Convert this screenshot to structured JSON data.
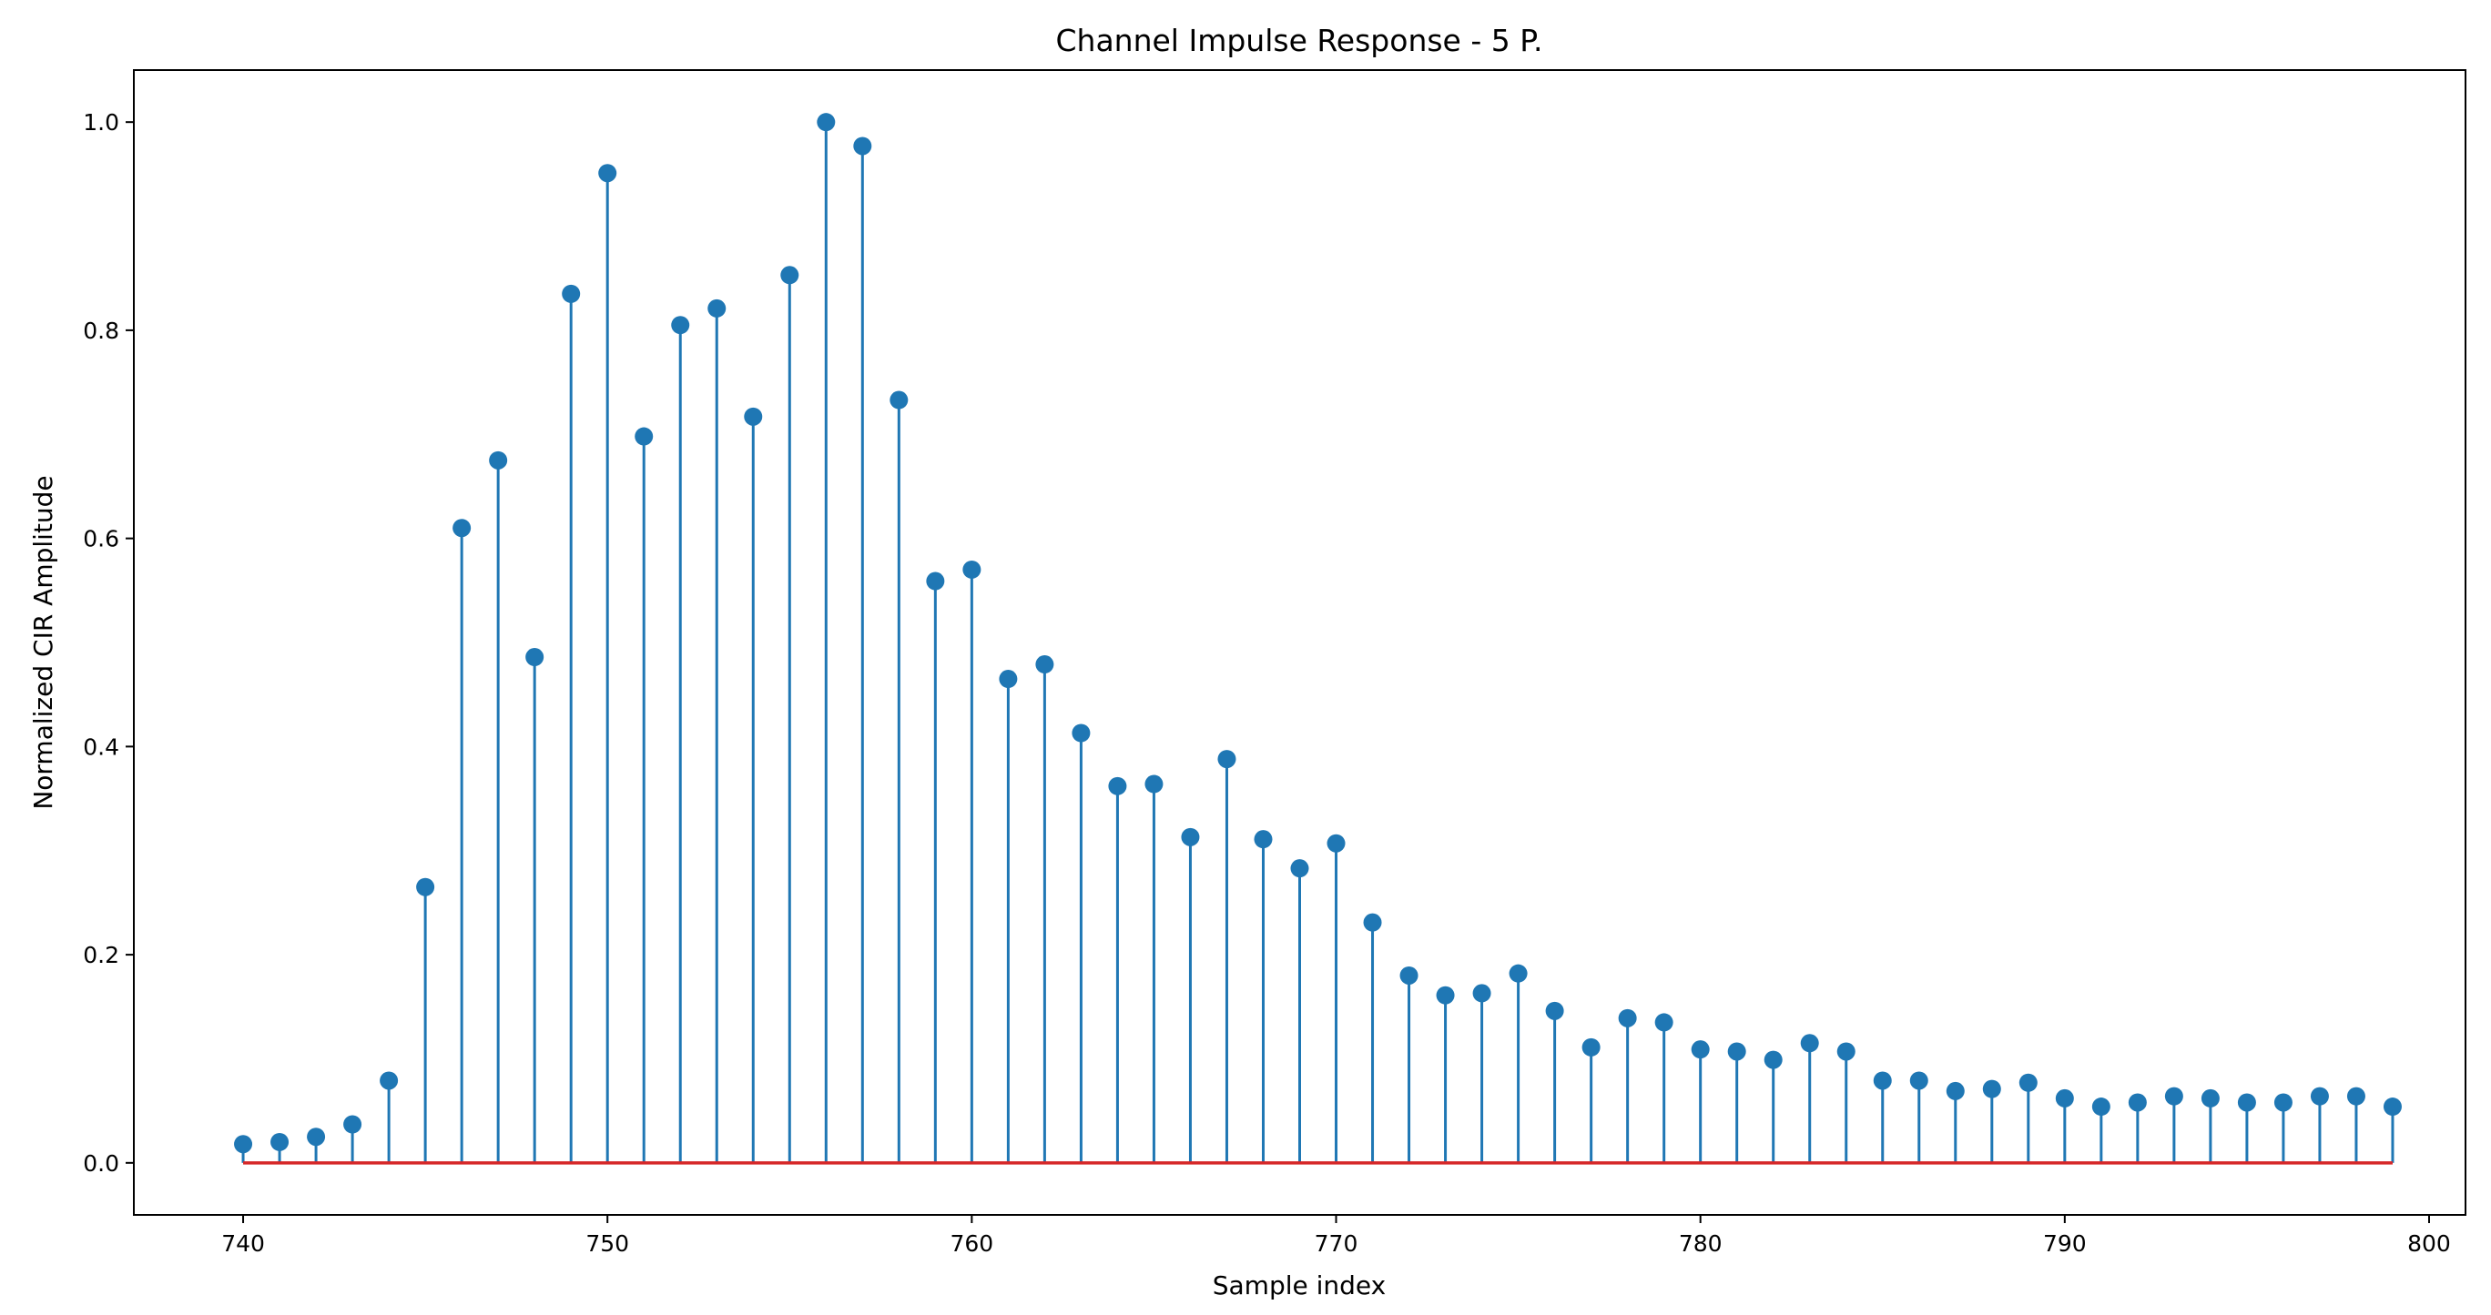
{
  "chart_data": {
    "type": "stem",
    "title": "Channel Impulse Response - 5 P.",
    "xlabel": "Sample index",
    "ylabel": "Normalized CIR Amplitude",
    "xlim": [
      737,
      801
    ],
    "ylim": [
      -0.05,
      1.05
    ],
    "x_ticks": [
      740,
      750,
      760,
      770,
      780,
      790,
      800
    ],
    "y_ticks": [
      0.0,
      0.2,
      0.4,
      0.6,
      0.8,
      1.0
    ],
    "x_tick_labels": [
      "740",
      "750",
      "760",
      "770",
      "780",
      "790",
      "800"
    ],
    "y_tick_labels": [
      "0.0",
      "0.2",
      "0.4",
      "0.6",
      "0.8",
      "1.0"
    ],
    "grid": false,
    "stem_color": "#1f77b4",
    "baseline_color": "#d62728",
    "x": [
      740,
      741,
      742,
      743,
      744,
      745,
      746,
      747,
      748,
      749,
      750,
      751,
      752,
      753,
      754,
      755,
      756,
      757,
      758,
      759,
      760,
      761,
      762,
      763,
      764,
      765,
      766,
      767,
      768,
      769,
      770,
      771,
      772,
      773,
      774,
      775,
      776,
      777,
      778,
      779,
      780,
      781,
      782,
      783,
      784,
      785,
      786,
      787,
      788,
      789,
      790,
      791,
      792,
      793,
      794,
      795,
      796,
      797,
      798,
      799
    ],
    "values": [
      0.018,
      0.02,
      0.025,
      0.037,
      0.079,
      0.265,
      0.61,
      0.675,
      0.486,
      0.835,
      0.951,
      0.698,
      0.805,
      0.821,
      0.717,
      0.853,
      1.0,
      0.977,
      0.733,
      0.559,
      0.57,
      0.465,
      0.479,
      0.413,
      0.362,
      0.364,
      0.313,
      0.388,
      0.311,
      0.283,
      0.307,
      0.231,
      0.18,
      0.161,
      0.163,
      0.182,
      0.146,
      0.111,
      0.139,
      0.135,
      0.109,
      0.107,
      0.099,
      0.115,
      0.107,
      0.079,
      0.079,
      0.069,
      0.071,
      0.077,
      0.062,
      0.054,
      0.058,
      0.064,
      0.062,
      0.058,
      0.058,
      0.064,
      0.064,
      0.054
    ]
  }
}
